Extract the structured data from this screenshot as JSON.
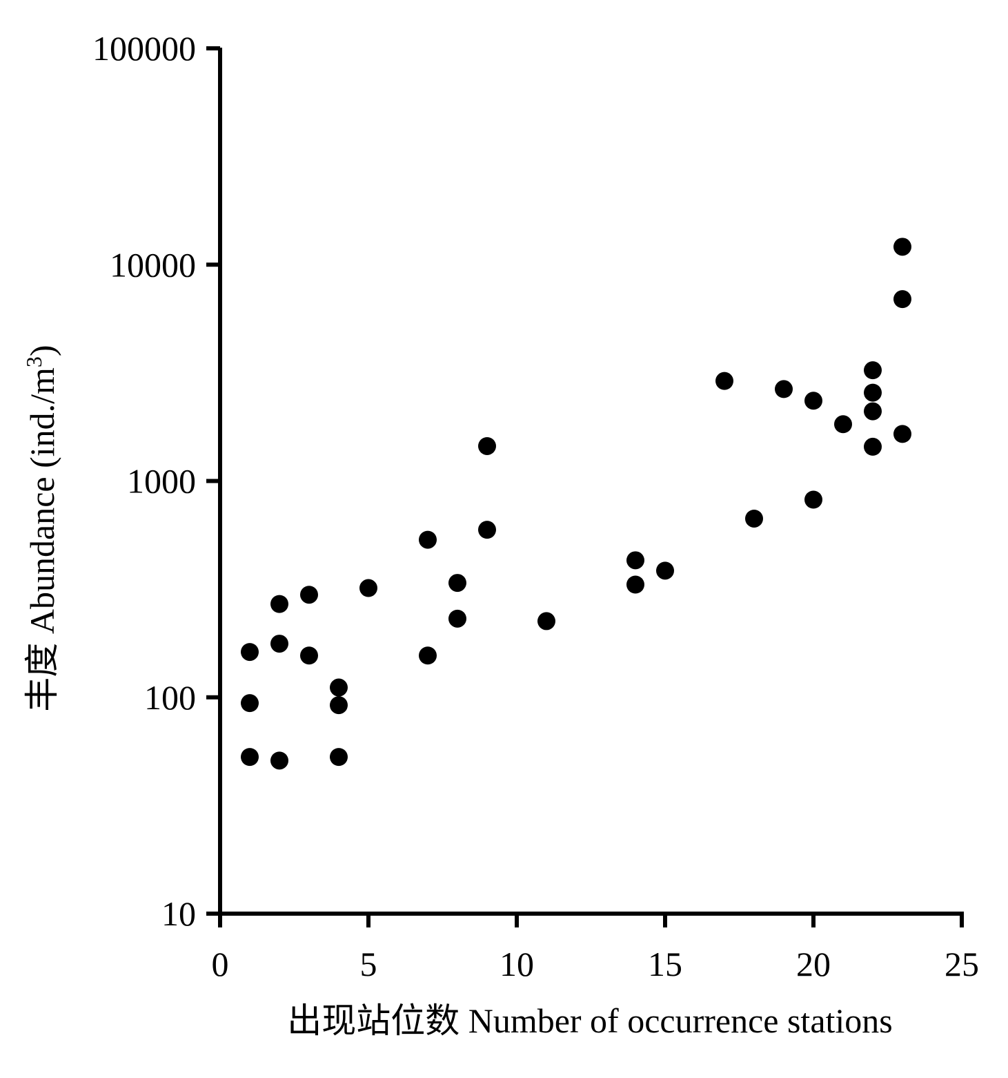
{
  "chart_data": {
    "type": "scatter",
    "xlabel": "出现站位数  Number of occurrence stations",
    "ylabel_main": "丰度 Abundance (ind./m",
    "ylabel_sup": "3",
    "ylabel_close": ")",
    "x_scale": "linear",
    "y_scale": "log",
    "xlim": [
      0,
      25
    ],
    "ylim": [
      10,
      100000
    ],
    "x_ticks": [
      0,
      5,
      10,
      15,
      20,
      25
    ],
    "x_tick_labels": [
      "0",
      "5",
      "10",
      "15",
      "20",
      "25"
    ],
    "y_ticks": [
      10,
      100,
      1000,
      10000,
      100000
    ],
    "y_tick_labels": [
      "10",
      "100",
      "1000",
      "10000",
      "100000"
    ],
    "grid": false,
    "marker_color": "#000000",
    "points": [
      {
        "x": 1,
        "y": 162
      },
      {
        "x": 1,
        "y": 94
      },
      {
        "x": 1,
        "y": 53
      },
      {
        "x": 2,
        "y": 270
      },
      {
        "x": 2,
        "y": 177
      },
      {
        "x": 2,
        "y": 51
      },
      {
        "x": 3,
        "y": 298
      },
      {
        "x": 3,
        "y": 156
      },
      {
        "x": 4,
        "y": 111
      },
      {
        "x": 4,
        "y": 92
      },
      {
        "x": 4,
        "y": 53
      },
      {
        "x": 5,
        "y": 320
      },
      {
        "x": 7,
        "y": 535
      },
      {
        "x": 7,
        "y": 156
      },
      {
        "x": 8,
        "y": 338
      },
      {
        "x": 8,
        "y": 231
      },
      {
        "x": 9,
        "y": 1450
      },
      {
        "x": 9,
        "y": 595
      },
      {
        "x": 11,
        "y": 225
      },
      {
        "x": 14,
        "y": 430
      },
      {
        "x": 14,
        "y": 332
      },
      {
        "x": 15,
        "y": 385
      },
      {
        "x": 17,
        "y": 2900
      },
      {
        "x": 18,
        "y": 670
      },
      {
        "x": 19,
        "y": 2660
      },
      {
        "x": 20,
        "y": 2350
      },
      {
        "x": 20,
        "y": 820
      },
      {
        "x": 21,
        "y": 1830
      },
      {
        "x": 22,
        "y": 3250
      },
      {
        "x": 22,
        "y": 2560
      },
      {
        "x": 22,
        "y": 2100
      },
      {
        "x": 22,
        "y": 1440
      },
      {
        "x": 23,
        "y": 12100
      },
      {
        "x": 23,
        "y": 6930
      },
      {
        "x": 23,
        "y": 1650
      }
    ]
  }
}
